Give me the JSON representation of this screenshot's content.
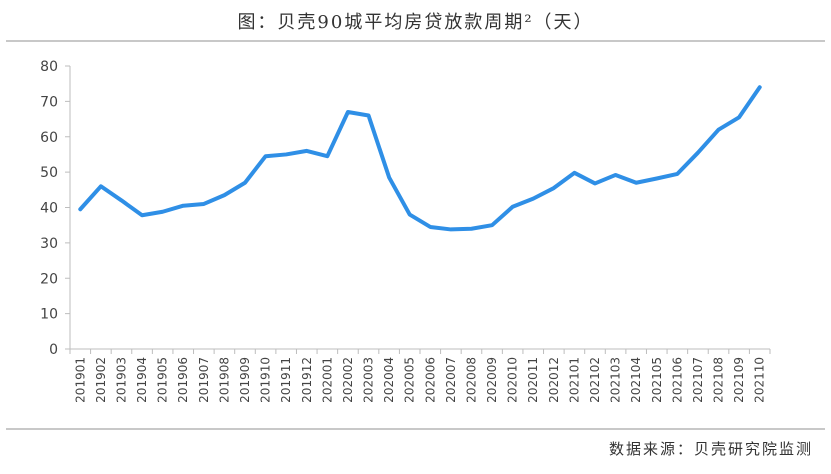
{
  "title": "图：贝壳90城平均房贷放款周期²（天）",
  "source": "数据来源：贝壳研究院监测",
  "chart_data": {
    "type": "line",
    "title": "图：贝壳90城平均房贷放款周期²（天）",
    "xlabel": "",
    "ylabel": "",
    "ylim": [
      0,
      80
    ],
    "yticks": [
      0,
      10,
      20,
      30,
      40,
      50,
      60,
      70,
      80
    ],
    "grid": false,
    "legend": "none",
    "line_color": "#2f8fe6",
    "categories": [
      "201901",
      "201902",
      "201903",
      "201904",
      "201905",
      "201906",
      "201907",
      "201908",
      "201909",
      "201910",
      "201911",
      "201912",
      "202001",
      "202002",
      "202003",
      "202004",
      "202005",
      "202006",
      "202007",
      "202008",
      "202009",
      "202010",
      "202011",
      "202012",
      "202101",
      "202102",
      "202103",
      "202104",
      "202105",
      "202106",
      "202107",
      "202108",
      "202109",
      "202110"
    ],
    "series": [
      {
        "values": [
          39.5,
          46,
          42,
          37.8,
          38.8,
          40.5,
          41,
          43.5,
          47,
          54.5,
          55,
          56,
          54.5,
          67,
          66,
          48.5,
          38,
          34.5,
          33.8,
          34,
          35,
          40.2,
          42.5,
          45.5,
          49.8,
          46.8,
          49.2,
          47,
          48.2,
          49.5,
          55.5,
          62,
          65.5,
          74
        ]
      }
    ]
  }
}
